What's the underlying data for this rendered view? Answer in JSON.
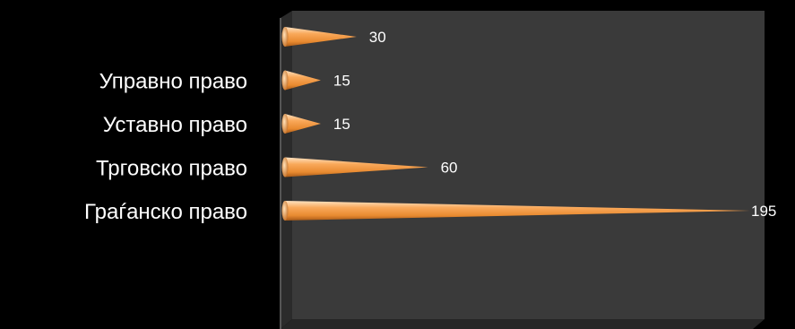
{
  "chart_data": {
    "type": "bar",
    "orientation": "horizontal",
    "style": "3d-cone",
    "categories": [
      "",
      "Управно право",
      "Уставно право",
      "Трговско право",
      "Граѓанско право"
    ],
    "values": [
      30,
      15,
      15,
      60,
      195
    ],
    "title": "",
    "xlabel": "",
    "ylabel": "",
    "xlim": [
      0,
      200
    ],
    "grid": false,
    "legend": "none",
    "colors": {
      "background": "#000000",
      "plot_back": "#3a3a3a",
      "floor": "#2a2a2a",
      "bar_light": "#ffd2a0",
      "bar_mid": "#f6a04a",
      "bar_dark": "#b0601a",
      "text": "#ffffff"
    }
  }
}
